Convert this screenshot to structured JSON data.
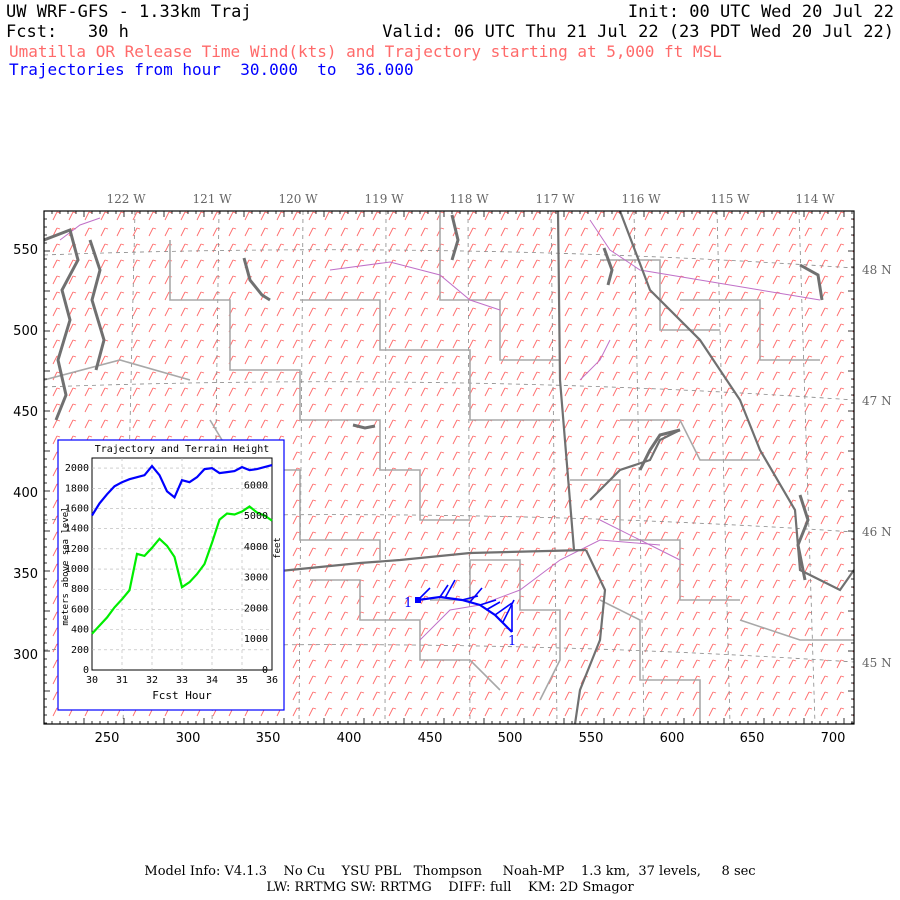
{
  "header": {
    "title": "UW WRF-GFS - 1.33km Traj",
    "fcst_label": "Fcst:",
    "fcst_value": "30 h",
    "init": "Init: 00 UTC Wed 20 Jul 22",
    "valid": "Valid: 06 UTC Thu 21 Jul 22 (23 PDT Wed 20 Jul 22)",
    "subtitle": "Umatilla OR Release Time Wind(kts) and Trajectory starting at 5,000 ft MSL",
    "traj_prefix": "Trajectories from hour",
    "traj_from": "30.000",
    "traj_to_word": "to",
    "traj_to": "36.000"
  },
  "map": {
    "lon_labels": [
      "122 W",
      "121 W",
      "120 W",
      "119 W",
      "118 W",
      "117 W",
      "116 W",
      "115 W",
      "114 W"
    ],
    "lat_labels": [
      "48 N",
      "47 N",
      "46 N",
      "45 N"
    ],
    "x_ticks": [
      "250",
      "300",
      "350",
      "400",
      "450",
      "500",
      "550",
      "600",
      "650",
      "700"
    ],
    "y_ticks": [
      "550",
      "500",
      "450",
      "400",
      "350",
      "300"
    ],
    "trajectory_start_label": "1",
    "trajectory_end_label": "1",
    "colors": {
      "wind_barbs": "#ff6a6a",
      "trajectory": "#0000ff",
      "state_borders": "#707070",
      "county_lines": "#a8a8a8",
      "rivers": "#c070c8",
      "grid": "#888888"
    }
  },
  "inset": {
    "title": "Trajectory and Terrain Height",
    "xlabel": "Fcst Hour",
    "ylabel_left": "meters above sea level",
    "ylabel_right": "feet",
    "x_ticks": [
      "30",
      "31",
      "32",
      "33",
      "34",
      "35",
      "36"
    ],
    "y_ticks_left": [
      "0",
      "200",
      "400",
      "600",
      "800",
      "1000",
      "1200",
      "1400",
      "1600",
      "1800",
      "2000"
    ],
    "y_ticks_right": [
      "0",
      "1000",
      "2000",
      "3000",
      "4000",
      "5000",
      "6000"
    ]
  },
  "chart_data": {
    "type": "line",
    "title": "Trajectory and Terrain Height",
    "xlabel": "Fcst Hour",
    "ylabel": "meters above sea level",
    "y2label": "feet",
    "xlim": [
      30,
      36
    ],
    "ylim": [
      0,
      2100
    ],
    "grid": true,
    "series": [
      {
        "color": "#0000ff",
        "x": [
          30,
          30.25,
          30.5,
          30.75,
          31,
          31.25,
          31.5,
          31.75,
          32,
          32.25,
          32.5,
          32.75,
          33,
          33.25,
          33.5,
          33.75,
          34,
          34.25,
          34.5,
          34.75,
          35,
          35.25,
          35.5,
          35.75,
          36
        ],
        "y": [
          1530,
          1650,
          1740,
          1820,
          1860,
          1890,
          1910,
          1930,
          2020,
          1930,
          1770,
          1710,
          1880,
          1860,
          1910,
          1990,
          2000,
          1950,
          1960,
          1970,
          2010,
          1980,
          1990,
          2010,
          2030
        ]
      },
      {
        "color": "#00ee00",
        "x": [
          30,
          30.25,
          30.5,
          30.75,
          31,
          31.25,
          31.5,
          31.75,
          32,
          32.25,
          32.5,
          32.75,
          33,
          33.25,
          33.5,
          33.75,
          34,
          34.25,
          34.5,
          34.75,
          35,
          35.25,
          35.5,
          35.75,
          36
        ],
        "y": [
          360,
          440,
          520,
          620,
          700,
          790,
          1150,
          1130,
          1210,
          1300,
          1230,
          1120,
          820,
          870,
          950,
          1050,
          1260,
          1490,
          1550,
          1540,
          1570,
          1620,
          1560,
          1530,
          1480
        ]
      }
    ]
  },
  "footer": {
    "line1": "Model Info: V4.1.3    No Cu    YSU PBL   Thompson     Noah-MP    1.3 km,  37 levels,     8 sec",
    "line2": "LW: RRTMG SW: RRTMG    DIFF: full    KM: 2D Smagor"
  }
}
